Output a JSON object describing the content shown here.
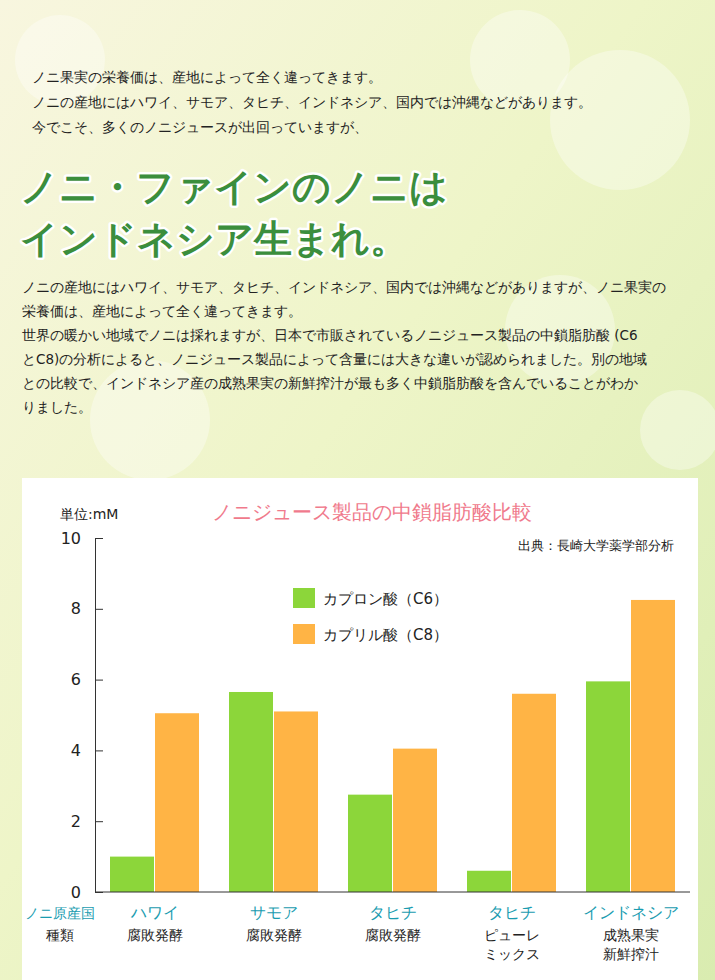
{
  "page": {
    "intro": [
      "ノニ果実の栄養価は、産地によって全く違ってきます。",
      "ノニの産地にはハワイ、サモア、タヒチ、インドネシア、国内では沖縄などがあります。",
      "今でこそ、多くのノニジュースが出回っていますが、"
    ],
    "headline": [
      "ノニ・ファインのノニは",
      "インドネシア生まれ。"
    ],
    "body": [
      "ノニの産地にはハワイ、サモア、タヒチ、インドネシア、国内では沖縄などがありますが、ノニ果実の",
      "栄養価は、産地によって全く違ってきます。",
      "世界の暖かい地域でノニは採れますが、日本で市販されているノニジュース製品の中鎖脂肪酸 (C6",
      "とC8)の分析によると、ノニジュース製品によって含量には大きな違いが認められました。別の地域",
      "との比較で、インドネシア産の成熟果実の新鮮搾汁が最も多く中鎖脂肪酸を含んでいることがわか",
      "りました。"
    ]
  },
  "chart_data": {
    "type": "bar",
    "title": "ノニジュース製品の中鎖脂肪酸比較",
    "y_label": "単位:mM",
    "annotation": "出典：長崎大学薬学部分析",
    "x_row_labels": [
      "ノニ原産国",
      "種類"
    ],
    "categories": [
      "ハワイ",
      "サモア",
      "タヒチ",
      "タヒチ",
      "インドネシア"
    ],
    "category_types": [
      [
        "腐敗発酵"
      ],
      [
        "腐敗発酵"
      ],
      [
        "腐敗発酵"
      ],
      [
        "ピューレ",
        "ミックス"
      ],
      [
        "成熟果実",
        "新鮮搾汁"
      ]
    ],
    "series": [
      {
        "name": "カプロン酸（C6）",
        "color": "#8cd63a",
        "values": [
          1.0,
          5.65,
          2.75,
          0.6,
          5.95
        ]
      },
      {
        "name": "カプリル酸（C8）",
        "color": "#ffb445",
        "values": [
          5.05,
          5.1,
          4.05,
          5.6,
          8.25
        ]
      }
    ],
    "ylim": [
      0,
      10
    ],
    "yticks": [
      0,
      2,
      4,
      6,
      8,
      10
    ],
    "grid": false,
    "legend": "top"
  }
}
